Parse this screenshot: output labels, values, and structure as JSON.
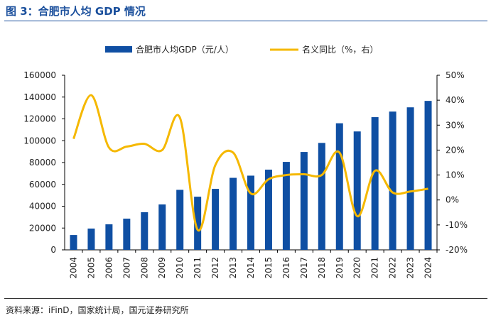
{
  "title": "图 3：合肥市人均 GDP 情况",
  "source": "资料来源：iFinD，国家统计局，国元证券研究所",
  "colors": {
    "bar": "#0f4fa3",
    "line": "#f5b800"
  },
  "chart_data": {
    "type": "bar+line",
    "categories": [
      "2004",
      "2005",
      "2006",
      "2007",
      "2008",
      "2009",
      "2010",
      "2011",
      "2012",
      "2013",
      "2014",
      "2015",
      "2016",
      "2017",
      "2018",
      "2019",
      "2020",
      "2021",
      "2022",
      "2023",
      "2024"
    ],
    "series": [
      {
        "name": "合肥市人均GDP（元/人）",
        "type": "bar",
        "axis": "left",
        "values": [
          13600,
          19500,
          23400,
          28600,
          34500,
          41600,
          55000,
          48700,
          55900,
          66000,
          68000,
          73500,
          80600,
          89700,
          98000,
          116000,
          108500,
          121600,
          126700,
          130600,
          136500
        ]
      },
      {
        "name": "名义同比（%，右）",
        "type": "line",
        "axis": "right",
        "values": [
          24.5,
          42,
          21,
          21.4,
          22.5,
          20,
          33,
          -12,
          14,
          19,
          2.6,
          8.3,
          10,
          10.3,
          10,
          19,
          -6.5,
          11.7,
          3,
          3.4,
          4.5
        ]
      }
    ],
    "left_axis": {
      "range": [
        0,
        160000
      ],
      "ticks": [
        "0",
        "20000",
        "40000",
        "60000",
        "80000",
        "100000",
        "120000",
        "140000",
        "160000"
      ]
    },
    "right_axis": {
      "range": [
        -20,
        50
      ],
      "ticks": [
        "-20%",
        "-10%",
        "0%",
        "10%",
        "20%",
        "30%",
        "40%",
        "50%"
      ]
    },
    "legend": "top",
    "grid": false
  }
}
